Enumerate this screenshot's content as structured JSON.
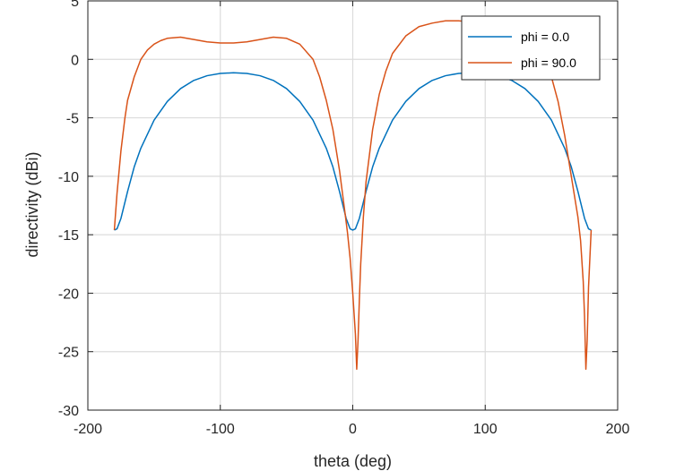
{
  "chart_data": {
    "type": "line",
    "title": "",
    "xlabel": "theta (deg)",
    "ylabel": "directivity (dBi)",
    "xlim": [
      -200,
      200
    ],
    "ylim": [
      -30,
      5
    ],
    "xticks": [
      -200,
      -100,
      0,
      100,
      200
    ],
    "yticks": [
      -30,
      -25,
      -20,
      -15,
      -10,
      -5,
      0,
      5
    ],
    "xtick_labels": [
      "-200",
      "-100",
      "0",
      "100",
      "200"
    ],
    "ytick_labels": [
      "-30",
      "-25",
      "-20",
      "-15",
      "-10",
      "-5",
      "0",
      "5"
    ],
    "grid": true,
    "legend_position": "top-right",
    "series": [
      {
        "name": "phi = 0.0",
        "color": "#0072bd",
        "x": [
          -180,
          -178,
          -175,
          -170,
          -165,
          -160,
          -150,
          -140,
          -130,
          -120,
          -110,
          -100,
          -90,
          -80,
          -70,
          -60,
          -50,
          -40,
          -30,
          -20,
          -15,
          -10,
          -5,
          -2,
          0,
          2,
          5,
          10,
          15,
          20,
          30,
          40,
          50,
          60,
          70,
          80,
          90,
          100,
          110,
          120,
          130,
          140,
          150,
          160,
          165,
          170,
          175,
          178,
          180
        ],
        "y": [
          -14.6,
          -14.5,
          -13.6,
          -11.3,
          -9.2,
          -7.6,
          -5.2,
          -3.6,
          -2.5,
          -1.8,
          -1.4,
          -1.2,
          -1.15,
          -1.2,
          -1.4,
          -1.8,
          -2.5,
          -3.6,
          -5.2,
          -7.6,
          -9.2,
          -11.3,
          -13.6,
          -14.5,
          -14.6,
          -14.5,
          -13.6,
          -11.3,
          -9.2,
          -7.6,
          -5.2,
          -3.6,
          -2.5,
          -1.8,
          -1.4,
          -1.2,
          -1.15,
          -1.2,
          -1.4,
          -1.8,
          -2.5,
          -3.6,
          -5.2,
          -7.6,
          -9.2,
          -11.3,
          -13.6,
          -14.5,
          -14.6
        ]
      },
      {
        "name": "phi = 90.0",
        "color": "#d95319",
        "x": [
          -180,
          -178,
          -175,
          -172,
          -170,
          -165,
          -160,
          -155,
          -150,
          -145,
          -140,
          -130,
          -120,
          -110,
          -100,
          -90,
          -80,
          -70,
          -60,
          -50,
          -40,
          -30,
          -25,
          -20,
          -15,
          -10,
          -6,
          -4,
          -2,
          0,
          2,
          3,
          4,
          5,
          6,
          8,
          10,
          15,
          20,
          25,
          30,
          40,
          50,
          60,
          70,
          80,
          90,
          100,
          110,
          120,
          130,
          140,
          145,
          150,
          155,
          160,
          165,
          170,
          172,
          174,
          175,
          176,
          177,
          178,
          180
        ],
        "y": [
          -14.6,
          -11.5,
          -7.8,
          -5.0,
          -3.5,
          -1.5,
          0.0,
          0.8,
          1.3,
          1.6,
          1.8,
          1.9,
          1.7,
          1.5,
          1.4,
          1.4,
          1.5,
          1.7,
          1.9,
          1.8,
          1.3,
          0.0,
          -1.5,
          -3.5,
          -6.0,
          -9.5,
          -13.0,
          -14.8,
          -17.0,
          -20.0,
          -23.5,
          -26.5,
          -24.0,
          -20.5,
          -17.5,
          -13.5,
          -10.5,
          -6.0,
          -3.0,
          -1.0,
          0.5,
          2.0,
          2.8,
          3.1,
          3.3,
          3.3,
          3.2,
          3.1,
          2.9,
          2.6,
          2.0,
          0.8,
          0.0,
          -1.5,
          -3.6,
          -6.5,
          -10.0,
          -13.5,
          -15.5,
          -19.0,
          -22.0,
          -26.5,
          -24.0,
          -19.5,
          -14.6
        ]
      }
    ]
  }
}
